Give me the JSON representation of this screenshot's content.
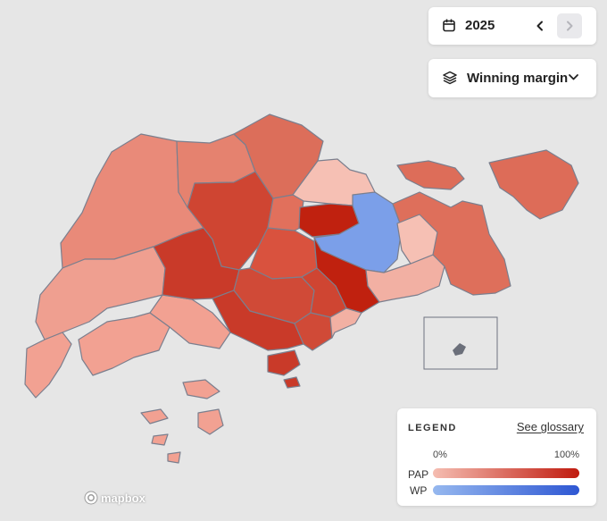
{
  "controls": {
    "year": "2025",
    "prev_icon": "chevron-left-icon",
    "next_icon": "chevron-right-icon",
    "layer_label": "Winning margin"
  },
  "legend": {
    "title": "LEGEND",
    "glossary_link": "See glossary",
    "scale_min": "0%",
    "scale_max": "100%",
    "rows": [
      {
        "party": "PAP",
        "color_from": "#f5bdb1",
        "color_to": "#c01a0e"
      },
      {
        "party": "WP",
        "color_from": "#96b8ef",
        "color_to": "#2e57d3"
      }
    ]
  },
  "attribution": {
    "provider": "mapbox"
  },
  "map_regions": [
    {
      "id": "west",
      "party": "PAP",
      "color": "#e98a79"
    },
    {
      "id": "west-coast",
      "party": "PAP",
      "color": "#f2a192"
    },
    {
      "id": "jurong",
      "party": "PAP",
      "color": "#ef9f90"
    },
    {
      "id": "north-west",
      "party": "PAP",
      "color": "#e5826f"
    },
    {
      "id": "north",
      "party": "PAP",
      "color": "#dc6e5a"
    },
    {
      "id": "central-north",
      "party": "PAP",
      "color": "#cf4532"
    },
    {
      "id": "ang-mo-kio",
      "party": "PAP",
      "color": "#d9523e"
    },
    {
      "id": "bishan",
      "party": "PAP",
      "color": "#d04a37"
    },
    {
      "id": "tanjong-pagar",
      "party": "PAP",
      "color": "#c93a29"
    },
    {
      "id": "sengkang",
      "party": "PAP",
      "color": "#f6c0b4"
    },
    {
      "id": "aljunied",
      "party": "WP",
      "color": "#7d9fe8"
    },
    {
      "id": "marine-parade",
      "party": "PAP",
      "color": "#c0210f"
    },
    {
      "id": "pasir-ris",
      "party": "PAP",
      "color": "#e1705c"
    },
    {
      "id": "east-coast",
      "party": "PAP",
      "color": "#f2b0a3"
    },
    {
      "id": "tampines",
      "party": "PAP",
      "color": "#de6f5b"
    },
    {
      "id": "pulau-ubin",
      "party": "PAP",
      "color": "#dd6d59"
    },
    {
      "id": "pulau-tekong",
      "party": "PAP",
      "color": "#dd6c58"
    }
  ]
}
